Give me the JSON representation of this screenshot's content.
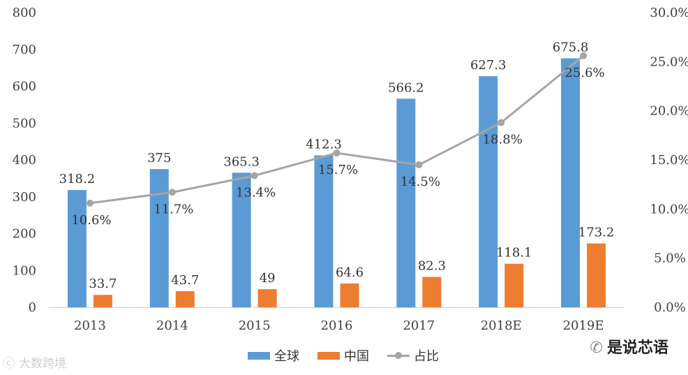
{
  "chart_data": {
    "type": "bar",
    "categories": [
      "2013",
      "2014",
      "2015",
      "2016",
      "2017",
      "2018E",
      "2019E"
    ],
    "series": [
      {
        "name": "全球",
        "type": "bar",
        "axis": "left",
        "color": "#5B9BD5",
        "values": [
          318.2,
          375,
          365.3,
          412.3,
          566.2,
          627.3,
          675.8
        ],
        "labels": [
          "318.2",
          "375",
          "365.3",
          "412.3",
          "566.2",
          "627.3",
          "675.8"
        ]
      },
      {
        "name": "中国",
        "type": "bar",
        "axis": "left",
        "color": "#ED7D31",
        "values": [
          33.7,
          43.7,
          49,
          64.6,
          82.3,
          118.1,
          173.2
        ],
        "labels": [
          "33.7",
          "43.7",
          "49",
          "64.6",
          "82.3",
          "118.1",
          "173.2"
        ]
      },
      {
        "name": "占比",
        "type": "line",
        "axis": "right",
        "color": "#A5A5A5",
        "values": [
          10.6,
          11.7,
          13.4,
          15.7,
          14.5,
          18.8,
          25.6
        ],
        "labels": [
          "10.6%",
          "11.7%",
          "13.4%",
          "15.7%",
          "14.5%",
          "18.8%",
          "25.6%"
        ]
      }
    ],
    "y_left": {
      "ylim": [
        0,
        800
      ],
      "ticks": [
        "0",
        "100",
        "200",
        "300",
        "400",
        "500",
        "600",
        "700",
        "800"
      ]
    },
    "y_right": {
      "ylim": [
        0,
        30
      ],
      "ticks": [
        "0.0%",
        "5.0%",
        "10.0%",
        "15.0%",
        "20.0%",
        "25.0%",
        "30.0%"
      ]
    },
    "grid": false,
    "legend_position": "bottom"
  },
  "legend": {
    "global": "全球",
    "china": "中国",
    "share": "占比"
  },
  "watermarks": {
    "left": "大数跨境",
    "right": "是说芯语"
  }
}
